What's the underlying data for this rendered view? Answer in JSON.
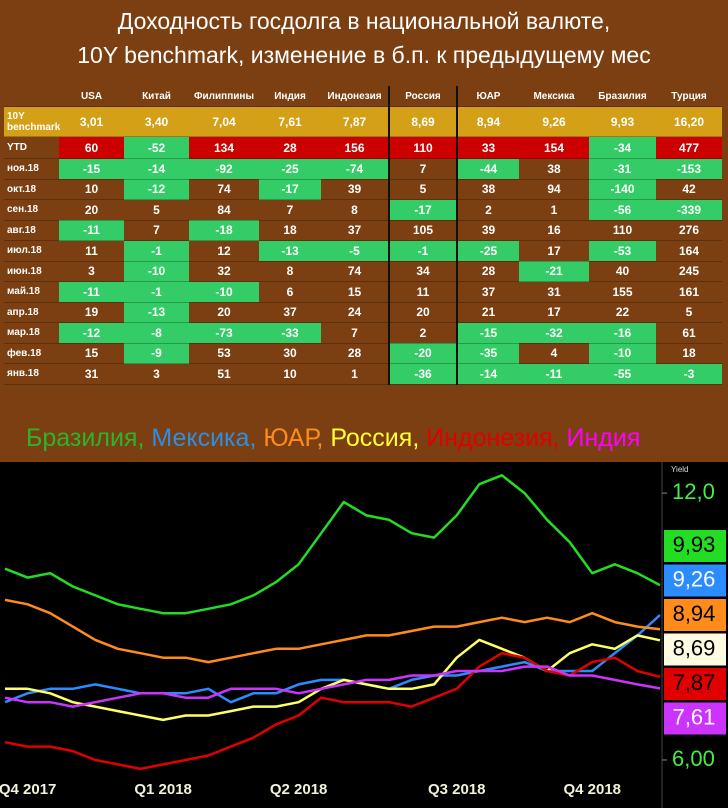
{
  "title": [
    "Доходность госдолга в национальной валюте,",
    "10Y benchmark, изменение в б.п. к предыдущему мес"
  ],
  "table": {
    "header": [
      "USA",
      "Китай",
      "Филиппины",
      "Индия",
      "Индонезия",
      "Россия",
      "ЮАР",
      "Мексика",
      "Бразилия",
      "Турция"
    ],
    "rows": [
      {
        "label": "10Y benchmark",
        "cells": [
          "3,01",
          "3,40",
          "7,04",
          "7,61",
          "7,87",
          "8,69",
          "8,94",
          "9,26",
          "9,93",
          "16,20"
        ]
      },
      {
        "label": "YTD",
        "cells": [
          "60",
          "-52",
          "134",
          "28",
          "156",
          "110",
          "33",
          "154",
          "-34",
          "477"
        ]
      },
      {
        "label": "ноя.18",
        "cells": [
          "-15",
          "-14",
          "-92",
          "-25",
          "-74",
          "7",
          "-44",
          "38",
          "-31",
          "-153"
        ]
      },
      {
        "label": "окт.18",
        "cells": [
          "10",
          "-12",
          "74",
          "-17",
          "39",
          "5",
          "38",
          "94",
          "-140",
          "42"
        ]
      },
      {
        "label": "сен.18",
        "cells": [
          "20",
          "5",
          "84",
          "7",
          "8",
          "-17",
          "2",
          "1",
          "-56",
          "-339"
        ]
      },
      {
        "label": "авг.18",
        "cells": [
          "-11",
          "7",
          "-18",
          "18",
          "37",
          "105",
          "39",
          "16",
          "110",
          "276"
        ]
      },
      {
        "label": "июл.18",
        "cells": [
          "11",
          "-1",
          "12",
          "-13",
          "-5",
          "-1",
          "-25",
          "17",
          "-53",
          "164"
        ]
      },
      {
        "label": "июн.18",
        "cells": [
          "3",
          "-10",
          "32",
          "8",
          "74",
          "34",
          "28",
          "-21",
          "40",
          "245"
        ]
      },
      {
        "label": "май.18",
        "cells": [
          "-11",
          "-1",
          "-10",
          "6",
          "15",
          "11",
          "37",
          "31",
          "155",
          "161"
        ]
      },
      {
        "label": "апр.18",
        "cells": [
          "19",
          "-13",
          "20",
          "37",
          "24",
          "20",
          "21",
          "17",
          "22",
          "5"
        ]
      },
      {
        "label": "мар.18",
        "cells": [
          "-12",
          "-8",
          "-73",
          "-33",
          "7",
          "2",
          "-15",
          "-32",
          "-16",
          "61"
        ]
      },
      {
        "label": "фев.18",
        "cells": [
          "15",
          "-9",
          "53",
          "30",
          "28",
          "-20",
          "-35",
          "4",
          "-10",
          "18"
        ]
      },
      {
        "label": "янв.18",
        "cells": [
          "31",
          "3",
          "51",
          "10",
          "1",
          "-36",
          "-14",
          "-11",
          "-55",
          "-3"
        ]
      }
    ]
  },
  "chart_data": {
    "type": "line",
    "legend_separator": ", ",
    "y_axis_label": "Yield",
    "categories": [
      null,
      "Q4 2017",
      null,
      null,
      null,
      null,
      null,
      "Q1 2018",
      null,
      null,
      null,
      null,
      null,
      "Q2 2018",
      null,
      null,
      null,
      null,
      null,
      null,
      "Q3 2018",
      null,
      null,
      null,
      null,
      null,
      "Q4 2018",
      null,
      null,
      null
    ],
    "ylim": [
      5.1,
      12.7
    ],
    "yticks": [
      {
        "value": 12,
        "label": "12,0"
      },
      {
        "value": 6,
        "label": "6,00"
      }
    ],
    "series": [
      {
        "name": "Бразилия",
        "color": "#22dd22",
        "legend_color": "#2bb52b",
        "values": [
          10.3,
          10.1,
          10.2,
          9.9,
          9.7,
          9.5,
          9.4,
          9.3,
          9.3,
          9.4,
          9.5,
          9.7,
          10.0,
          10.4,
          11.1,
          11.8,
          11.5,
          11.4,
          11.1,
          11.0,
          11.5,
          12.2,
          12.4,
          12.0,
          11.4,
          10.9,
          10.2,
          10.4,
          10.2,
          9.93
        ],
        "value_labels": [
          null,
          null,
          null,
          null,
          null,
          null,
          null,
          null,
          null,
          null,
          null,
          null,
          null,
          null,
          null,
          null,
          null,
          null,
          null,
          null,
          null,
          null,
          null,
          null,
          null,
          null,
          null,
          null,
          null,
          "9,93"
        ]
      },
      {
        "name": "Мексика",
        "color": "#2a8cff",
        "legend_color": "#2e8fe0",
        "values": [
          7.3,
          7.5,
          7.6,
          7.6,
          7.7,
          7.6,
          7.5,
          7.5,
          7.5,
          7.6,
          7.3,
          7.5,
          7.5,
          7.7,
          7.8,
          7.8,
          7.7,
          7.6,
          7.8,
          7.9,
          7.9,
          8.0,
          8.1,
          8.2,
          8.0,
          8.0,
          8.0,
          8.4,
          8.8,
          9.26
        ],
        "value_labels": [
          null,
          null,
          null,
          null,
          null,
          null,
          null,
          null,
          null,
          null,
          null,
          null,
          null,
          null,
          null,
          null,
          null,
          null,
          null,
          null,
          null,
          null,
          null,
          null,
          null,
          null,
          null,
          null,
          null,
          "9,26"
        ]
      },
      {
        "name": "ЮАР",
        "color": "#ff8c1a",
        "legend_color": "#ff8c1a",
        "values": [
          9.6,
          9.5,
          9.3,
          9.0,
          8.7,
          8.5,
          8.4,
          8.3,
          8.3,
          8.2,
          8.3,
          8.4,
          8.5,
          8.5,
          8.6,
          8.7,
          8.8,
          8.8,
          8.9,
          9.0,
          9.0,
          9.1,
          9.2,
          9.1,
          9.2,
          9.1,
          9.3,
          9.1,
          9.0,
          8.94
        ],
        "value_labels": [
          null,
          null,
          null,
          null,
          null,
          null,
          null,
          null,
          null,
          null,
          null,
          null,
          null,
          null,
          null,
          null,
          null,
          null,
          null,
          null,
          null,
          null,
          null,
          null,
          null,
          null,
          null,
          null,
          null,
          "8,94"
        ]
      },
      {
        "name": "Россия",
        "color": "#ffff66",
        "legend_color": "#ffff33",
        "values": [
          7.6,
          7.6,
          7.5,
          7.3,
          7.2,
          7.1,
          7.0,
          6.9,
          7.0,
          7.0,
          7.1,
          7.2,
          7.2,
          7.3,
          7.6,
          7.8,
          7.7,
          7.6,
          7.6,
          7.7,
          8.3,
          8.7,
          8.5,
          8.3,
          8.0,
          8.4,
          8.6,
          8.5,
          8.8,
          8.69
        ],
        "value_labels": [
          null,
          null,
          null,
          null,
          null,
          null,
          null,
          null,
          null,
          null,
          null,
          null,
          null,
          null,
          null,
          null,
          null,
          null,
          null,
          null,
          null,
          null,
          null,
          null,
          null,
          null,
          null,
          null,
          null,
          "8,69"
        ]
      },
      {
        "name": "Индонезия",
        "color": "#e00000",
        "legend_color": "#e00000",
        "values": [
          6.4,
          6.3,
          6.3,
          6.2,
          6.0,
          5.9,
          5.8,
          5.9,
          6.0,
          6.1,
          6.3,
          6.5,
          6.8,
          7.0,
          7.4,
          7.3,
          7.3,
          7.3,
          7.2,
          7.4,
          7.6,
          8.1,
          8.4,
          8.3,
          8.0,
          7.9,
          8.2,
          8.3,
          8.0,
          7.87
        ],
        "value_labels": [
          null,
          null,
          null,
          null,
          null,
          null,
          null,
          null,
          null,
          null,
          null,
          null,
          null,
          null,
          null,
          null,
          null,
          null,
          null,
          null,
          null,
          null,
          null,
          null,
          null,
          null,
          null,
          null,
          null,
          "7,87"
        ]
      },
      {
        "name": "Индия",
        "color": "#cc33ff",
        "legend_color": "#ff00ff",
        "values": [
          7.4,
          7.3,
          7.3,
          7.2,
          7.3,
          7.4,
          7.5,
          7.5,
          7.4,
          7.4,
          7.6,
          7.6,
          7.6,
          7.5,
          7.6,
          7.7,
          7.8,
          7.8,
          7.9,
          7.9,
          8.0,
          8.0,
          8.0,
          8.1,
          8.1,
          7.9,
          7.9,
          7.8,
          7.7,
          7.61
        ],
        "value_labels": [
          null,
          null,
          null,
          null,
          null,
          null,
          null,
          null,
          null,
          null,
          null,
          null,
          null,
          null,
          null,
          null,
          null,
          null,
          null,
          null,
          null,
          null,
          null,
          null,
          null,
          null,
          null,
          null,
          null,
          "7,61"
        ]
      }
    ]
  }
}
